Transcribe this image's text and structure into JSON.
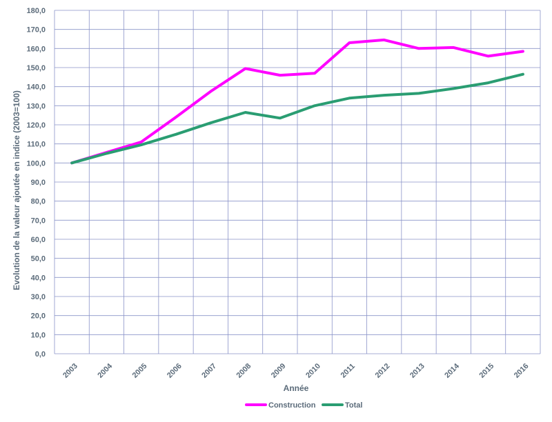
{
  "chart_data": {
    "type": "line",
    "title": "",
    "xlabel": "Année",
    "ylabel": "Evolution de la valeur ajoutée en indice (2003=100)",
    "categories": [
      "2003",
      "2004",
      "2005",
      "2006",
      "2007",
      "2008",
      "2009",
      "2010",
      "2011",
      "2012",
      "2013",
      "2014",
      "2015",
      "2016"
    ],
    "ylim": [
      0,
      180
    ],
    "y_step": 10,
    "y_tick_labels": [
      "0,0",
      "10,0",
      "20,0",
      "30,0",
      "40,0",
      "50,0",
      "60,0",
      "70,0",
      "80,0",
      "90,0",
      "100,0",
      "110,0",
      "120,0",
      "130,0",
      "140,0",
      "150,0",
      "160,0",
      "170,0",
      "180,0"
    ],
    "grid": true,
    "legend_position": "bottom",
    "series": [
      {
        "name": "Construction",
        "color": "#ff00ff",
        "values": [
          100.0,
          105.5,
          111.0,
          124.0,
          137.5,
          149.5,
          146.0,
          147.0,
          163.0,
          164.5,
          160.0,
          160.5,
          156.0,
          158.5
        ]
      },
      {
        "name": "Total",
        "color": "#2a9d72",
        "values": [
          100.0,
          105.0,
          109.5,
          115.0,
          121.0,
          126.5,
          123.5,
          130.0,
          134.0,
          135.5,
          136.5,
          139.0,
          142.0,
          146.5
        ]
      }
    ]
  }
}
